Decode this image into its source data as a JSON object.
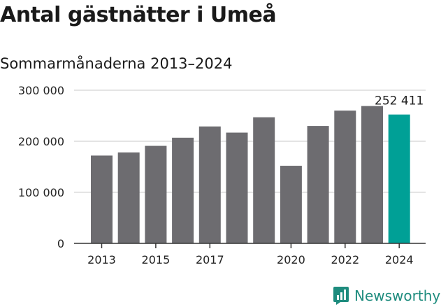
{
  "title": "Antal gästnätter i Umeå",
  "subtitle": "Sommarmånaderna 2013–2024",
  "brand": "Newsworthy",
  "colors": {
    "bar": "#6d6c70",
    "highlight": "#00a096",
    "grid": "#dcdcdc",
    "brand": "#1e8c7e"
  },
  "chart_data": {
    "type": "bar",
    "categories": [
      "2013",
      "2014",
      "2015",
      "2016",
      "2017",
      "2018",
      "2019",
      "2020",
      "2021",
      "2022",
      "2023",
      "2024"
    ],
    "x_tick_labels": [
      "2013",
      "",
      "2015",
      "",
      "2017",
      "",
      "",
      "2020",
      "",
      "2022",
      "",
      "2024"
    ],
    "values": [
      172000,
      178000,
      191000,
      207000,
      229000,
      217000,
      247000,
      152000,
      230000,
      260000,
      269000,
      252411
    ],
    "highlight_index": 11,
    "highlight_label": "252 411",
    "y_ticks": [
      0,
      100000,
      200000,
      300000
    ],
    "y_tick_labels": [
      "0",
      "100 000",
      "200 000",
      "300 000"
    ],
    "ylim": [
      0,
      300000
    ],
    "grid": true,
    "xlabel": "",
    "ylabel": ""
  }
}
